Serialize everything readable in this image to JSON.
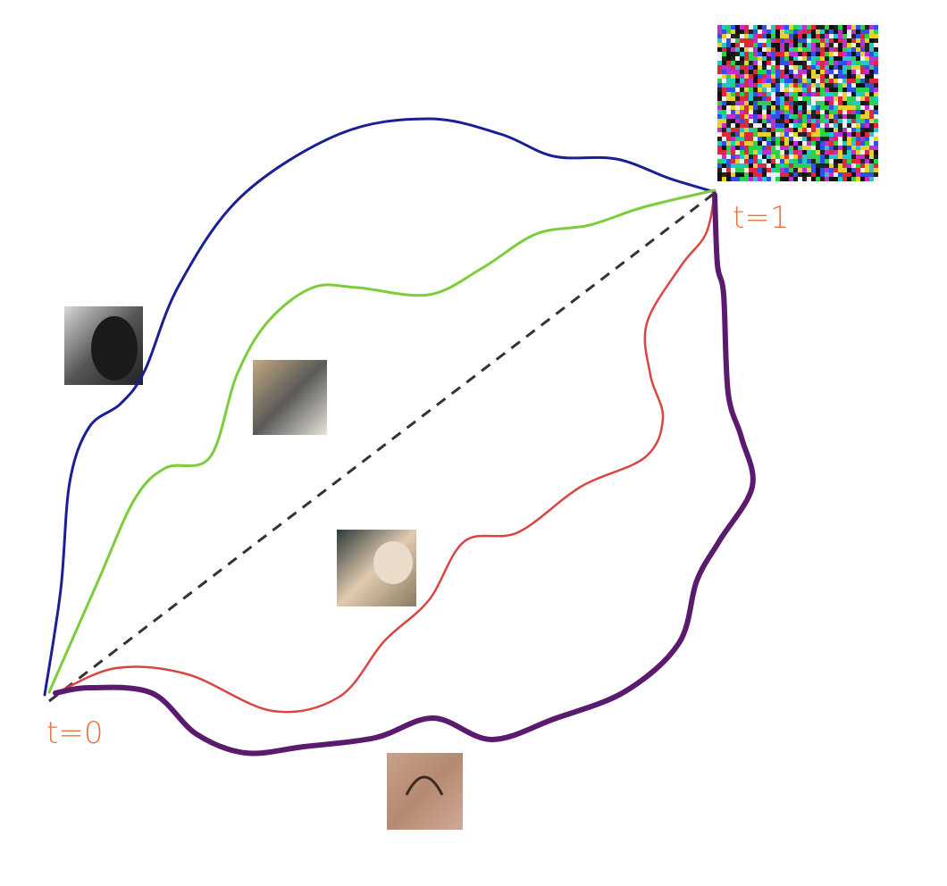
{
  "labels": {
    "start": "t=0",
    "end": "t=1"
  }
}
